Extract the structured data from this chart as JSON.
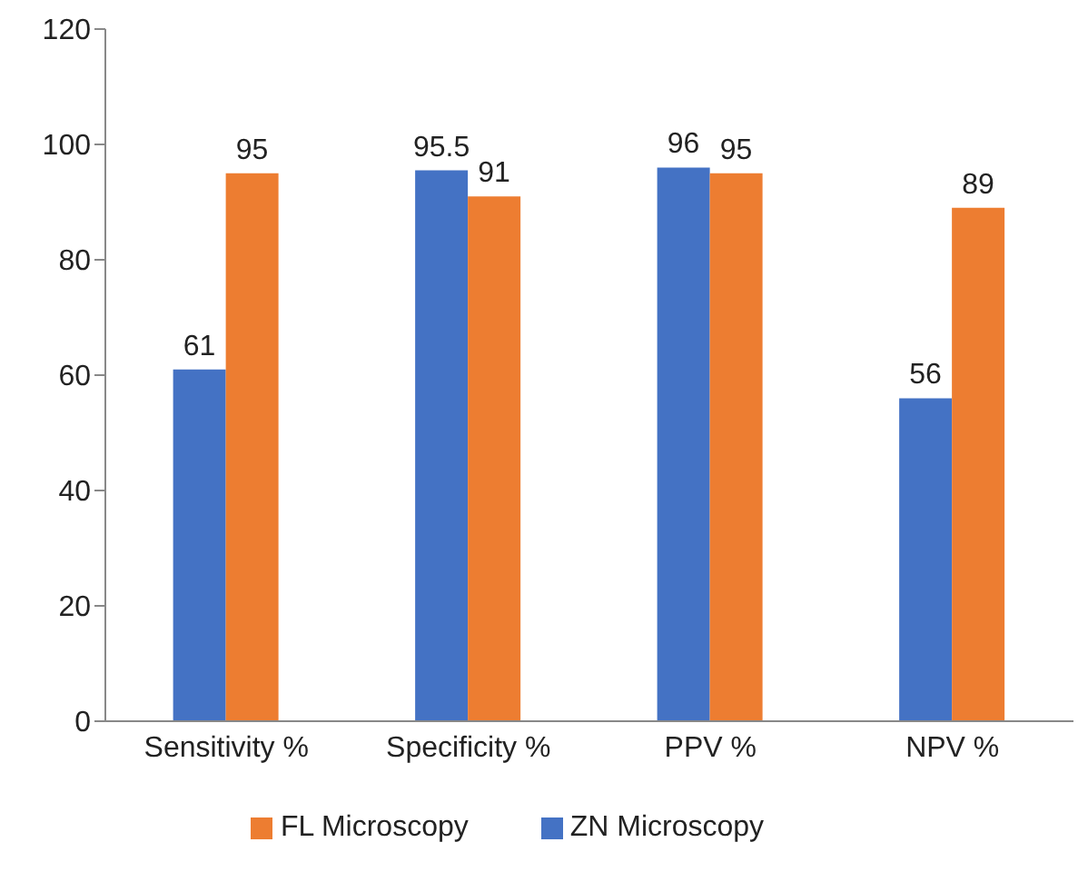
{
  "chart_data": {
    "type": "bar",
    "categories": [
      "Sensitivity %",
      "Specificity %",
      "PPV %",
      "NPV %"
    ],
    "series": [
      {
        "name": "ZN Microscopy",
        "color": "#4472c4",
        "values": [
          61,
          95.5,
          96,
          56
        ]
      },
      {
        "name": "FL Microscopy",
        "color": "#ed7d31",
        "values": [
          95,
          91,
          95,
          89
        ]
      }
    ],
    "ylim": [
      0,
      120
    ],
    "yticks": [
      0,
      20,
      40,
      60,
      80,
      100,
      120
    ],
    "data_labels": true,
    "legend": "bottom",
    "grid": false
  }
}
